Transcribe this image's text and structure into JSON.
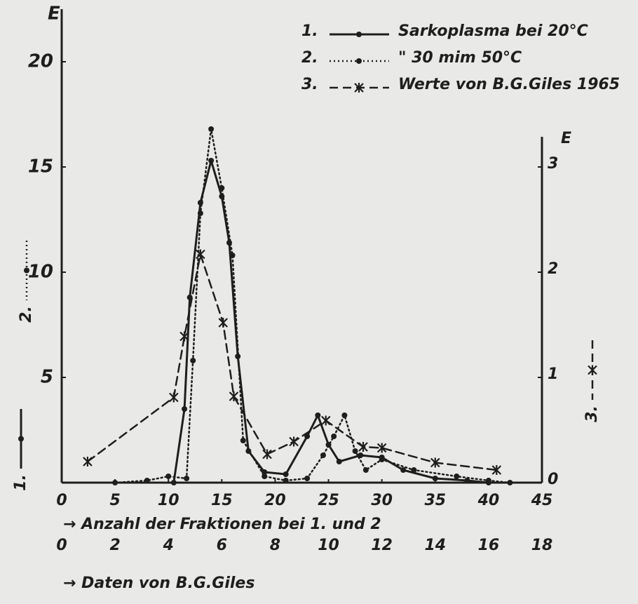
{
  "chart_data": {
    "type": "line",
    "left_axis_label": "E",
    "right_axis_label": "E",
    "x_axis_label": "→ Anzahl der Fraktionen bei 1. und 2",
    "x2_axis_label": "→ Daten von B.G.Giles",
    "xlim": [
      0,
      45
    ],
    "xticks": [
      0,
      5,
      10,
      15,
      20,
      25,
      30,
      35,
      40,
      45
    ],
    "x2lim": [
      0,
      18
    ],
    "x2ticks": [
      0,
      2,
      4,
      6,
      8,
      10,
      12,
      14,
      16,
      18
    ],
    "ylim": [
      0,
      22.5
    ],
    "yticks": [
      5,
      10,
      15,
      20
    ],
    "y2lim": [
      0,
      4.5
    ],
    "y2ticks": [
      0,
      1,
      2,
      3
    ],
    "series": [
      {
        "label": "1.",
        "name": "Sarkoplasma bei 20°C",
        "color": "#1e1e1e",
        "style": "solid",
        "marker": "dot",
        "x": [
          10.5,
          11.5,
          12,
          13,
          14,
          15,
          15.7,
          16.5,
          17.5,
          19,
          21,
          23,
          24,
          25,
          26,
          28,
          30,
          32,
          35,
          38,
          40
        ],
        "values": [
          0,
          3.5,
          8.8,
          13.3,
          15.3,
          13.6,
          11.4,
          6,
          1.5,
          0.5,
          0.4,
          2.2,
          3.2,
          1.8,
          1.0,
          1.3,
          1.2,
          0.6,
          0.2,
          0.1,
          0
        ]
      },
      {
        "label": "2.",
        "name": "\"   30 mim   50°C",
        "color": "#1e1e1e",
        "style": "dotted",
        "marker": "dot",
        "x": [
          5,
          8,
          10,
          11.7,
          12.3,
          13,
          14,
          15,
          16,
          17,
          19,
          21,
          23,
          24.5,
          25.5,
          26.5,
          27.5,
          28.5,
          30,
          33,
          37,
          40,
          42
        ],
        "values": [
          0,
          0.1,
          0.3,
          0.2,
          5.8,
          12.8,
          16.8,
          14,
          10.8,
          2,
          0.3,
          0.1,
          0.2,
          1.3,
          2.2,
          3.2,
          1.5,
          0.6,
          1.1,
          0.6,
          0.3,
          0.1,
          0
        ]
      },
      {
        "label": "3.",
        "name": "Werte von B.G.Giles 1965",
        "color": "#1e1e1e",
        "style": "dashed",
        "marker": "star",
        "axis": "y2",
        "x_axis": "x2",
        "x": [
          0.97,
          4.2,
          4.6,
          5.2,
          6.05,
          6.45,
          7.7,
          8.7,
          9.9,
          11.3,
          12.0,
          14.0,
          16.3
        ],
        "values": [
          0.2,
          0.81,
          1.39,
          2.17,
          1.52,
          0.82,
          0.27,
          0.39,
          0.59,
          0.34,
          0.33,
          0.19,
          0.12
        ]
      }
    ]
  }
}
